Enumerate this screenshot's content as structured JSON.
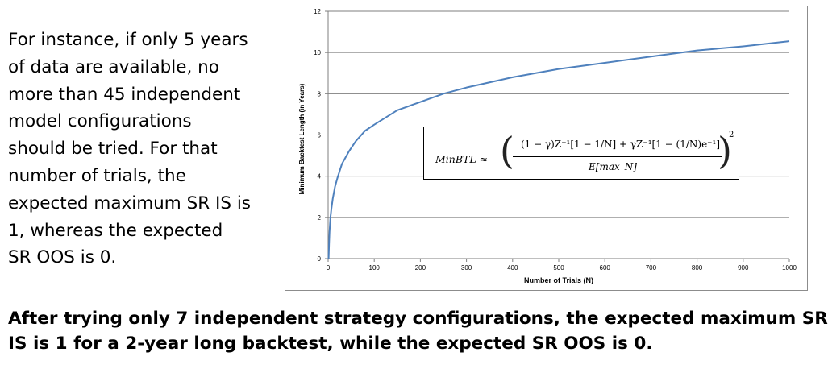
{
  "side_text": {
    "lines": [
      "For instance, if only 5 years",
      "of data are available, no",
      "more than 45 independent",
      "model configurations",
      "should be tried. For that",
      "number of trials, the",
      "expected maximum SR IS is",
      "1, whereas the expected",
      "SR OOS is 0."
    ]
  },
  "caption": {
    "lines": [
      "After trying only 7 independent strategy configurations, the expected maximum SR",
      "IS is 1 for a 2-year long backtest, while the expected SR OOS is 0."
    ]
  },
  "formula": {
    "lhs": "MinBTL ≈",
    "numerator": "(1 − γ)Z⁻¹[1 − 1/N] + γZ⁻¹[1 − (1/N)e⁻¹]",
    "denominator": "E[max_N]",
    "exponent": "2"
  },
  "colors": {
    "curve": "#4f81bd",
    "grid": "#7f7f7f",
    "axis": "#7f7f7f"
  },
  "chart_data": {
    "type": "line",
    "xlabel": "Number of Trials (N)",
    "ylabel": "Minimum Backtest Length (in Years)",
    "xlim": [
      0,
      1000
    ],
    "ylim": [
      0,
      12
    ],
    "x_ticks": [
      "0",
      "100",
      "200",
      "300",
      "400",
      "500",
      "600",
      "700",
      "800",
      "900",
      "1000"
    ],
    "y_ticks": [
      "0",
      "2",
      "4",
      "6",
      "8",
      "10",
      "12"
    ],
    "grid": "horizontal",
    "series": [
      {
        "x": [
          1,
          2,
          3,
          5,
          7,
          10,
          15,
          20,
          30,
          45,
          60,
          80,
          100,
          150,
          200,
          250,
          300,
          400,
          500,
          600,
          700,
          800,
          900,
          1000
        ],
        "y": [
          0.0,
          0.7,
          1.3,
          2.0,
          2.4,
          2.9,
          3.5,
          3.9,
          4.6,
          5.2,
          5.7,
          6.2,
          6.5,
          7.2,
          7.6,
          8.0,
          8.3,
          8.8,
          9.2,
          9.5,
          9.8,
          10.1,
          10.3,
          10.55
        ]
      }
    ]
  }
}
